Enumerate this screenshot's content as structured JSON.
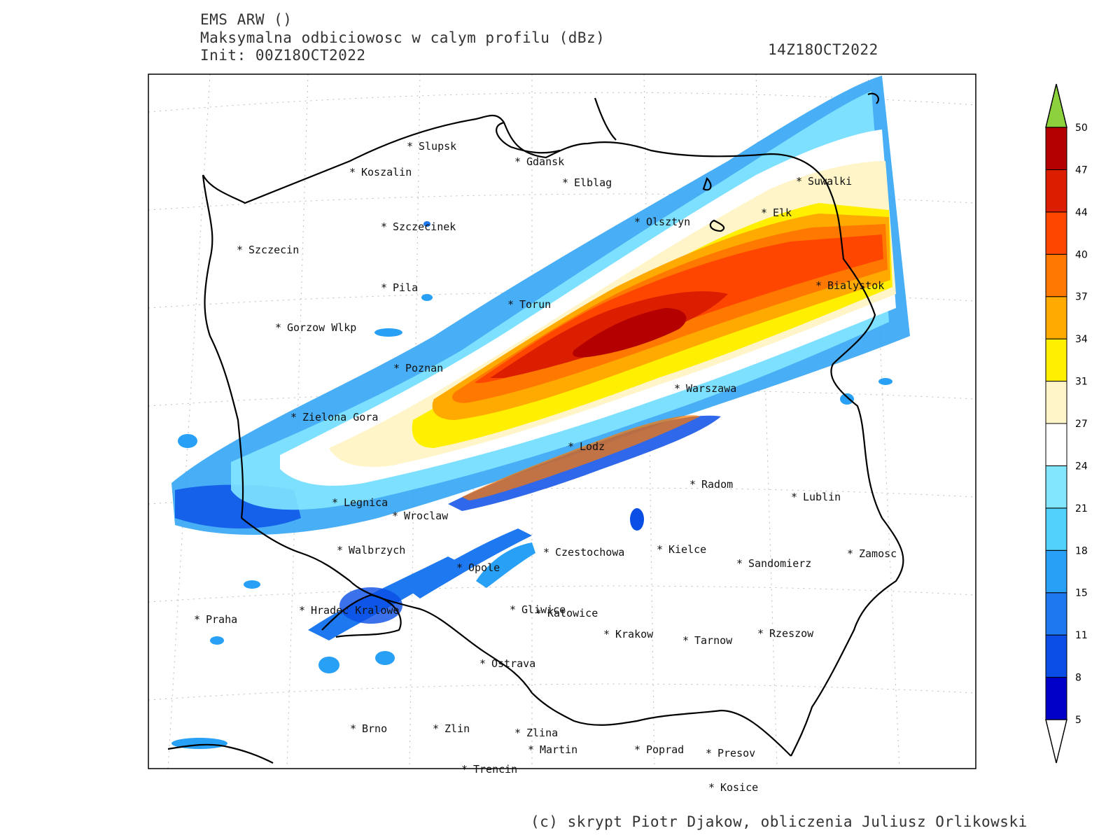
{
  "header": {
    "title": "EMS ARW ()",
    "subtitle": "Maksymalna odbiciowosc w calym profilu (dBz)",
    "init": "Init: 00Z18OCT2022",
    "valid_time": "14Z18OCT2022"
  },
  "footer": "(c) skrypt Piotr Djakow, obliczenia Juliusz Orlikowski",
  "colorbar": {
    "levels": [
      "5",
      "8",
      "11",
      "15",
      "18",
      "21",
      "24",
      "27",
      "31",
      "34",
      "37",
      "40",
      "44",
      "47",
      "50"
    ],
    "colors": [
      "#0000c8",
      "#0a4ee6",
      "#1e78f0",
      "#28a0f5",
      "#50d2fa",
      "#82e6ff",
      "#ffffff",
      "#fff5c8",
      "#fff000",
      "#ffaa00",
      "#ff7800",
      "#ff4600",
      "#dc1e00",
      "#b40000"
    ],
    "below_color": "#ffffff",
    "above_color": "#8cd23c"
  },
  "cities": [
    {
      "name": "Slupsk"
    },
    {
      "name": "Gdansk"
    },
    {
      "name": "Koszalin"
    },
    {
      "name": "Elblag"
    },
    {
      "name": "Suwalki"
    },
    {
      "name": "Elk"
    },
    {
      "name": "Olsztyn"
    },
    {
      "name": "Szczecinek"
    },
    {
      "name": "Szczecin"
    },
    {
      "name": "Pila"
    },
    {
      "name": "Bialystok"
    },
    {
      "name": "Torun"
    },
    {
      "name": "Gorzow Wlkp"
    },
    {
      "name": "Poznan"
    },
    {
      "name": "Warszawa"
    },
    {
      "name": "Zielona Gora"
    },
    {
      "name": "Lodz"
    },
    {
      "name": "Radom"
    },
    {
      "name": "Lublin"
    },
    {
      "name": "Legnica"
    },
    {
      "name": "Wroclaw"
    },
    {
      "name": "Walbrzych"
    },
    {
      "name": "Czestochowa"
    },
    {
      "name": "Kielce"
    },
    {
      "name": "Zamosc"
    },
    {
      "name": "Sandomierz"
    },
    {
      "name": "Opole"
    },
    {
      "name": "Praha"
    },
    {
      "name": "Hradec Kralowe"
    },
    {
      "name": "Gliwice"
    },
    {
      "name": "Katowice"
    },
    {
      "name": "Krakow"
    },
    {
      "name": "Tarnow"
    },
    {
      "name": "Rzeszow"
    },
    {
      "name": "Ostrava"
    },
    {
      "name": "Brno"
    },
    {
      "name": "Zlin"
    },
    {
      "name": "Zlina"
    },
    {
      "name": "Martin"
    },
    {
      "name": "Poprad"
    },
    {
      "name": "Presov"
    },
    {
      "name": "Trencin"
    },
    {
      "name": "Kosice"
    }
  ]
}
